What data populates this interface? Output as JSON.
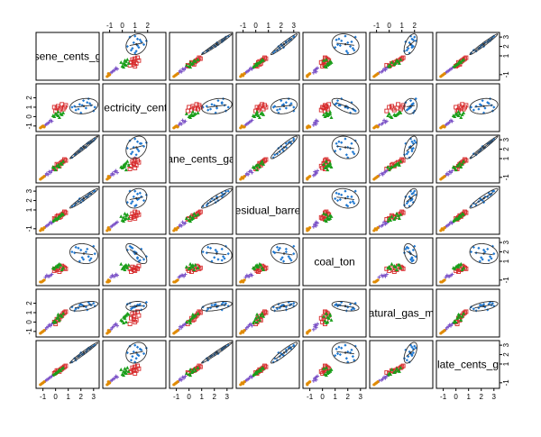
{
  "chart_data": {
    "type": "scatter",
    "variables": [
      "kerosene_cents_g",
      "electricity_cent",
      "propane_cents_ga",
      "residual_barre",
      "coal_ton",
      "natural_gas_m",
      "distillate_cents_g"
    ],
    "diagonal_labels": [
      "sene_cents_g",
      "lectricity_cent",
      "ane_cents_ga",
      "esidual_barre",
      "coal_ton",
      "atural_gas_m",
      "late_cents_g"
    ],
    "groups": [
      {
        "color": "#1f78d1",
        "marker": "diamond"
      },
      {
        "color": "#d62728",
        "marker": "square-open"
      },
      {
        "color": "#1a9e1a",
        "marker": "triangle"
      },
      {
        "color": "#7b52c7",
        "marker": "cross"
      },
      {
        "color": "#e08a00",
        "marker": "circle"
      }
    ],
    "axis_range": [
      -1.4,
      3.3
    ],
    "ticks": {
      "top": [
        {
          "column": 1,
          "labels": [
            "-1",
            "0",
            "1",
            "2"
          ],
          "values": [
            -1,
            0,
            1,
            2
          ]
        },
        {
          "column": 3,
          "labels": [
            "-1",
            "0",
            "1",
            "2",
            "3"
          ],
          "values": [
            -1,
            0,
            1,
            2,
            3
          ]
        },
        {
          "column": 5,
          "labels": [
            "-1",
            "0",
            "1",
            "2"
          ],
          "values": [
            -1,
            0,
            1,
            2
          ]
        }
      ],
      "bottom": [
        {
          "column": 0,
          "labels": [
            "-1",
            "0",
            "1",
            "2",
            "3"
          ],
          "values": [
            -1,
            0,
            1,
            2,
            3
          ]
        },
        {
          "column": 2,
          "labels": [
            "-1",
            "0",
            "1",
            "2",
            "3"
          ],
          "values": [
            -1,
            0,
            1,
            2,
            3
          ]
        },
        {
          "column": 4,
          "labels": [
            "-1",
            "0",
            "1",
            "2",
            "3"
          ],
          "values": [
            -1,
            0,
            1,
            2,
            3
          ]
        },
        {
          "column": 6,
          "labels": [
            "-1",
            "0",
            "1",
            "2",
            "3"
          ],
          "values": [
            -1,
            0,
            1,
            2,
            3
          ]
        }
      ],
      "left": [
        {
          "row": 1,
          "labels": [
            "-1",
            "0",
            "1",
            "2"
          ],
          "values": [
            -1,
            0,
            1,
            2
          ]
        },
        {
          "row": 3,
          "labels": [
            "-1",
            "1",
            "2",
            "3"
          ],
          "values": [
            -1,
            1,
            2,
            3
          ]
        },
        {
          "row": 5,
          "labels": [
            "-1",
            "0",
            "1",
            "2"
          ],
          "values": [
            -1,
            0,
            1,
            2
          ]
        }
      ],
      "right": [
        {
          "row": 0,
          "labels": [
            "-1",
            "1",
            "2",
            "3"
          ],
          "values": [
            -1,
            1,
            2,
            3
          ]
        },
        {
          "row": 2,
          "labels": [
            "-1",
            "1",
            "2",
            "3"
          ],
          "values": [
            -1,
            1,
            2,
            3
          ]
        },
        {
          "row": 4,
          "labels": [
            "-1",
            "1",
            "2",
            "3"
          ],
          "values": [
            -1,
            1,
            2,
            3
          ]
        },
        {
          "row": 6,
          "labels": [
            "-1",
            "1",
            "2",
            "3"
          ],
          "values": [
            -1,
            1,
            2,
            3
          ]
        }
      ]
    },
    "points": [
      [
        2.4,
        0.9,
        2.2,
        2.4,
        2.0,
        1.6,
        2.3,
        0
      ],
      [
        2.1,
        1.2,
        2.0,
        2.1,
        1.4,
        1.8,
        2.0,
        0
      ],
      [
        1.8,
        0.8,
        1.7,
        1.9,
        2.4,
        1.5,
        1.8,
        0
      ],
      [
        2.7,
        1.4,
        2.6,
        2.8,
        1.1,
        1.9,
        2.6,
        0
      ],
      [
        1.5,
        1.1,
        1.4,
        1.5,
        1.9,
        1.2,
        1.6,
        0
      ],
      [
        3.0,
        0.6,
        2.9,
        3.0,
        2.6,
        2.0,
        2.9,
        0
      ],
      [
        2.2,
        1.7,
        2.3,
        2.0,
        1.2,
        1.7,
        2.1,
        0
      ],
      [
        1.3,
        1.0,
        1.1,
        1.4,
        2.0,
        1.6,
        1.2,
        0
      ],
      [
        2.5,
        1.5,
        2.6,
        2.4,
        2.3,
        1.3,
        2.5,
        0
      ],
      [
        1.9,
        1.3,
        1.8,
        2.2,
        1.0,
        1.8,
        1.9,
        0
      ],
      [
        3.1,
        1.0,
        3.1,
        3.0,
        1.8,
        1.7,
        3.0,
        0
      ],
      [
        2.0,
        0.4,
        2.1,
        1.8,
        2.2,
        1.9,
        2.2,
        0
      ],
      [
        2.6,
        1.9,
        2.7,
        2.6,
        1.5,
        2.1,
        2.7,
        0
      ],
      [
        1.6,
        0.7,
        1.5,
        1.7,
        2.5,
        1.4,
        1.4,
        0
      ],
      [
        2.8,
        1.2,
        2.8,
        2.7,
        1.3,
        1.8,
        2.8,
        0
      ],
      [
        0.4,
        0.9,
        0.5,
        0.3,
        0.1,
        0.6,
        0.4,
        1
      ],
      [
        0.2,
        1.1,
        0.3,
        0.4,
        0.3,
        0.2,
        0.3,
        1
      ],
      [
        0.6,
        0.8,
        0.7,
        0.6,
        0.4,
        0.9,
        0.6,
        1
      ],
      [
        -0.1,
        1.0,
        0.0,
        0.1,
        0.0,
        0.0,
        0.0,
        1
      ],
      [
        0.8,
        1.2,
        0.8,
        0.7,
        0.2,
        1.1,
        0.8,
        1
      ],
      [
        0.3,
        0.7,
        0.2,
        0.2,
        -0.1,
        0.4,
        0.2,
        1
      ],
      [
        0.5,
        1.3,
        0.6,
        0.5,
        0.5,
        0.7,
        0.5,
        1
      ],
      [
        0.0,
        0.6,
        -0.1,
        0.0,
        0.2,
        -0.2,
        0.1,
        1
      ],
      [
        0.7,
        1.0,
        0.9,
        0.8,
        0.3,
        1.0,
        0.7,
        1
      ],
      [
        0.1,
        0.9,
        0.4,
        0.3,
        0.1,
        0.3,
        0.3,
        1
      ],
      [
        0.2,
        0.1,
        0.3,
        0.2,
        0.4,
        0.5,
        0.2,
        2
      ],
      [
        0.4,
        0.3,
        0.5,
        0.4,
        0.6,
        0.7,
        0.3,
        2
      ],
      [
        -0.1,
        0.0,
        0.0,
        -0.1,
        0.2,
        0.1,
        -0.1,
        2
      ],
      [
        0.1,
        0.2,
        0.2,
        0.0,
        0.5,
        0.4,
        0.1,
        2
      ],
      [
        0.6,
        0.4,
        0.7,
        0.5,
        0.3,
        0.9,
        0.6,
        2
      ],
      [
        0.3,
        -0.1,
        0.1,
        0.3,
        0.7,
        0.2,
        0.4,
        2
      ],
      [
        0.0,
        0.3,
        -0.2,
        0.1,
        0.4,
        0.0,
        0.0,
        2
      ],
      [
        0.5,
        0.2,
        0.4,
        0.6,
        0.1,
        0.6,
        0.5,
        2
      ],
      [
        -0.2,
        0.1,
        0.1,
        -0.2,
        0.3,
        -0.1,
        -0.2,
        2
      ],
      [
        0.2,
        0.5,
        0.3,
        0.1,
        0.6,
        0.8,
        0.2,
        2
      ],
      [
        -0.7,
        -0.8,
        -0.6,
        -0.7,
        -0.5,
        -0.6,
        -0.7,
        3
      ],
      [
        -0.5,
        -0.6,
        -0.4,
        -0.5,
        -0.6,
        -0.3,
        -0.5,
        3
      ],
      [
        -0.8,
        -0.9,
        -0.8,
        -0.8,
        -0.7,
        -0.8,
        -0.8,
        3
      ],
      [
        -0.3,
        -0.5,
        -0.3,
        -0.4,
        -0.4,
        -0.2,
        -0.3,
        3
      ],
      [
        -0.6,
        -0.7,
        -0.7,
        -0.6,
        -0.6,
        -0.5,
        -0.6,
        3
      ],
      [
        -0.4,
        -0.4,
        -0.5,
        -0.3,
        -0.5,
        -0.4,
        -0.4,
        3
      ],
      [
        -1.1,
        -1.1,
        -1.1,
        -1.0,
        -1.2,
        -1.1,
        -1.1,
        4
      ],
      [
        -1.0,
        -1.0,
        -1.0,
        -1.1,
        -1.1,
        -1.0,
        -1.0,
        4
      ],
      [
        -1.2,
        -1.2,
        -1.2,
        -1.2,
        -1.2,
        -1.2,
        -1.2,
        4
      ],
      [
        -0.9,
        -1.1,
        -0.9,
        -0.9,
        -1.0,
        -0.9,
        -0.9,
        4
      ]
    ],
    "grid": false,
    "legend": "none"
  }
}
